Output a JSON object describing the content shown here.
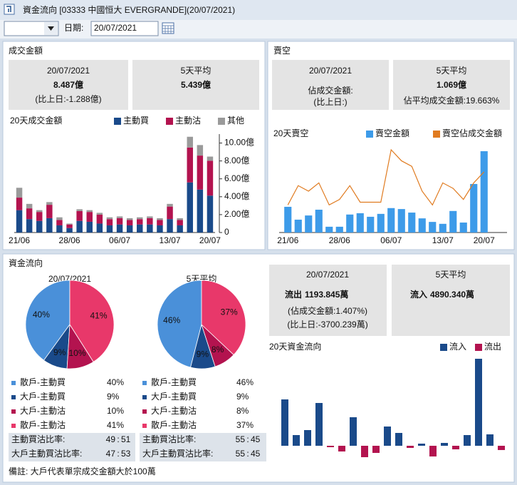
{
  "window": {
    "title": "資金流向 [03333 中國恒大 EVERGRANDE](20/07/2021)"
  },
  "toolbar": {
    "date_label": "日期:",
    "date": "20/07/2021"
  },
  "turnover": {
    "title": "成交金額",
    "today": {
      "date": "20/07/2021",
      "value": "8.487億",
      "change": "(比上日:-1.288億)"
    },
    "average": {
      "label": "5天平均",
      "value": "5.439億"
    }
  },
  "short_selling": {
    "title": "賣空",
    "today": {
      "date": "20/07/2021",
      "ratio": "佔成交金額:",
      "change": "(比上日:)"
    },
    "average": {
      "label": "5天平均",
      "value": "1.069億",
      "ratio": "佔平均成交金額:19.663%"
    }
  },
  "fund_flow": {
    "title": "資金流向",
    "ratio_separator": ":",
    "today": {
      "date": "20/07/2021",
      "direction": "流出",
      "amount": "1193.845萬",
      "ratio": "(佔成交金額:1.407%)",
      "change": "(比上日:-3700.239萬)"
    },
    "average": {
      "label": "5天平均",
      "direction": "流入",
      "amount": "4890.340萬"
    }
  },
  "note": "備註: 大戶代表單宗成交金額大於100萬",
  "chart_data": [
    {
      "type": "stacked_bar",
      "title": "20天成交金額",
      "categories": [
        "21/06",
        null,
        null,
        null,
        null,
        "28/06",
        null,
        null,
        null,
        null,
        "06/07",
        null,
        null,
        null,
        null,
        "13/07",
        null,
        null,
        null,
        "20/07"
      ],
      "series": [
        {
          "name": "主動買",
          "color": "#1a4a8a",
          "values": [
            2.5,
            1.5,
            1.3,
            1.6,
            0.8,
            0.5,
            1.3,
            1.2,
            1.0,
            0.8,
            0.9,
            0.8,
            0.9,
            0.9,
            0.8,
            1.5,
            0.8,
            5.6,
            4.8,
            4.122
          ]
        },
        {
          "name": "主動沽",
          "color": "#b3134f",
          "values": [
            1.4,
            1.2,
            1.0,
            1.5,
            0.6,
            0.4,
            1.1,
            1.1,
            1.0,
            0.7,
            0.7,
            0.6,
            0.6,
            0.7,
            0.6,
            1.4,
            0.6,
            3.9,
            3.8,
            3.9
          ]
        },
        {
          "name": "其他",
          "color": "#9a9a9a",
          "values": [
            1.1,
            0.5,
            0.2,
            0.3,
            0.3,
            0.1,
            0.2,
            0.2,
            0.2,
            0.2,
            0.2,
            0.2,
            0.2,
            0.2,
            0.2,
            0.3,
            0.2,
            1.2,
            1.175,
            0.465
          ]
        }
      ],
      "ylim": [
        0,
        11
      ],
      "yticks": [
        0,
        {
          "value": 2,
          "label": "2.00億"
        },
        {
          "value": 4,
          "label": "4.00億"
        },
        {
          "value": 6,
          "label": "6.00億"
        },
        {
          "value": 8,
          "label": "8.00億"
        },
        {
          "value": 10,
          "label": "10.00億"
        }
      ]
    },
    {
      "type": "bar_line",
      "title": "20天賣空",
      "categories": [
        "21/06",
        null,
        null,
        null,
        null,
        "28/06",
        null,
        null,
        null,
        null,
        "06/07",
        null,
        null,
        null,
        null,
        "13/07",
        null,
        null,
        null,
        "20/07"
      ],
      "series": [
        {
          "name": "賣空金額",
          "color": "#3d9be9",
          "values": [
            0.8,
            0.4,
            0.53,
            0.71,
            0.18,
            0.18,
            0.56,
            0.6,
            0.49,
            0.58,
            0.76,
            0.73,
            0.62,
            0.44,
            0.33,
            0.27,
            0.67,
            0.31,
            1.51,
            2.53
          ]
        },
        {
          "name": "賣空佔成交金額",
          "color": "#e07b20",
          "axis": "y2",
          "values": [
            10,
            17,
            15,
            18,
            10,
            12,
            17,
            11,
            11,
            11,
            30,
            26,
            24,
            15,
            10,
            18,
            16,
            12,
            18,
            22
          ]
        }
      ]
    },
    {
      "type": "pie",
      "title": "20/07/2021",
      "categories": [
        "散戶-主動買",
        "大戶-主動買",
        "大戶-主動沽",
        "散戶-主動沽"
      ],
      "values": [
        40,
        9,
        10,
        41
      ],
      "value_labels": [
        "40%",
        "9%",
        "10%",
        "41%"
      ],
      "colors": [
        "#4a90d9",
        "#1a4a8a",
        "#b3134f",
        "#e8386a"
      ],
      "ratios": [
        {
          "label": "主動買沽比率:",
          "buy": 49,
          "sell": 51
        },
        {
          "label": "大戶主動買沽比率:",
          "buy": 47,
          "sell": 53
        }
      ]
    },
    {
      "type": "pie",
      "title": "5天平均",
      "categories": [
        "散戶-主動買",
        "大戶-主動買",
        "大戶-主動沽",
        "散戶-主動沽"
      ],
      "values": [
        46,
        9,
        8,
        37
      ],
      "value_labels": [
        "46%",
        "9%",
        "8%",
        "37%"
      ],
      "colors": [
        "#4a90d9",
        "#1a4a8a",
        "#b3134f",
        "#e8386a"
      ],
      "ratios": [
        {
          "label": "主動買沽比率:",
          "buy": 55,
          "sell": 45
        },
        {
          "label": "大戶主動買沽比率:",
          "buy": 55,
          "sell": 45
        }
      ]
    },
    {
      "type": "flow_bar",
      "title": "20天資金流向",
      "values": [
        13000,
        3000,
        4400,
        12000,
        -400,
        -1600,
        8000,
        -3200,
        -2000,
        5400,
        3600,
        -600,
        600,
        -3000,
        800,
        -1000,
        3000,
        24400,
        3200,
        -1193.845
      ],
      "legend": [
        {
          "name": "流入",
          "color": "#1a4a8a"
        },
        {
          "name": "流出",
          "color": "#b3134f"
        }
      ]
    }
  ]
}
